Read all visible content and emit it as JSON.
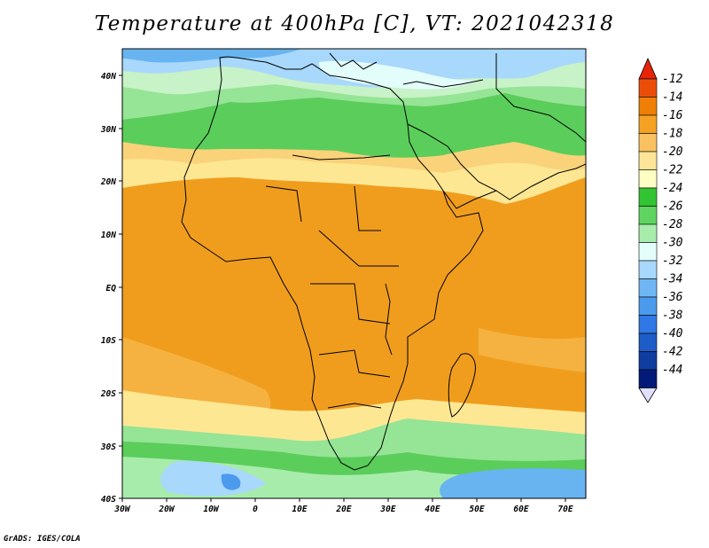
{
  "title": "Temperature at 400hPa [C], VT: 2021042318",
  "footer": "GrADS: IGES/COLA",
  "map": {
    "lon_range": [
      -30,
      75
    ],
    "lat_range": [
      -40,
      45
    ],
    "lon_ticks": [
      "30W",
      "20W",
      "10W",
      "0",
      "10E",
      "20E",
      "30E",
      "40E",
      "50E",
      "60E",
      "70E"
    ],
    "lat_ticks": [
      "40N",
      "30N",
      "20N",
      "10N",
      "EQ",
      "10S",
      "20S",
      "30S",
      "40S"
    ],
    "band_colors": [
      "#68b4f0",
      "#96e496",
      "#5bcd5b",
      "#fde793",
      "#f5b240",
      "#f09d1e"
    ]
  },
  "colorbar": {
    "labels": [
      "-12",
      "-14",
      "-16",
      "-18",
      "-20",
      "-22",
      "-24",
      "-26",
      "-28",
      "-30",
      "-32",
      "-34",
      "-36",
      "-38",
      "-40",
      "-42",
      "-44"
    ],
    "colors": [
      "#ec4e0a",
      "#f07f08",
      "#f5a224",
      "#f9c160",
      "#fde497",
      "#fefec4",
      "#33c433",
      "#60d460",
      "#a8ecac",
      "#e3fdfb",
      "#a8d8fb",
      "#6eb7f4",
      "#4c9aee",
      "#2f78e5",
      "#1e5cc8",
      "#0f3ea0",
      "#031a78"
    ],
    "top_arrow_color": "#e6240a",
    "bottom_arrow_color": "#e0e0fc"
  }
}
